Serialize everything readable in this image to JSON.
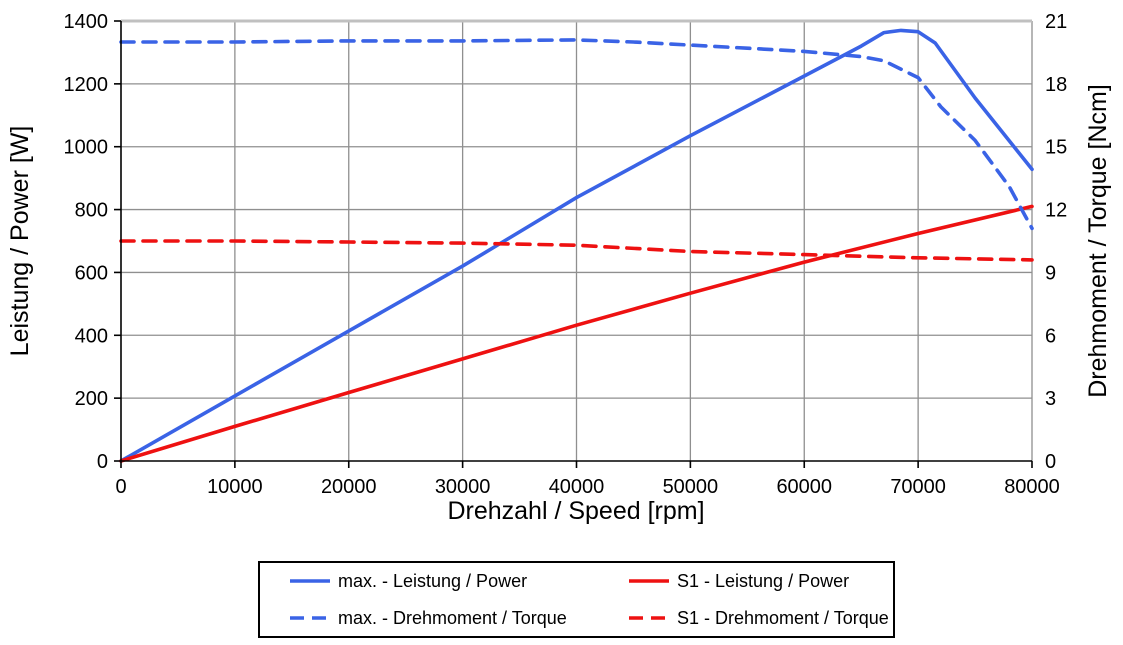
{
  "chart_data": {
    "type": "line",
    "title": "",
    "xlabel": "Drehzahl / Speed [rpm]",
    "ylabel_left": "Leistung / Power [W]",
    "ylabel_right": "Drehmoment / Torque [Ncm]",
    "grid": true,
    "legend_position": "bottom",
    "x_axis": {
      "min": 0,
      "max": 80000,
      "tick_step": 10000,
      "tick_labels": [
        "0",
        "10000",
        "20000",
        "30000",
        "40000",
        "50000",
        "60000",
        "70000",
        "80000"
      ]
    },
    "y_left": {
      "min": 0,
      "max": 1400,
      "tick_step": 200,
      "tick_labels": [
        "0",
        "200",
        "400",
        "600",
        "800",
        "1000",
        "1200",
        "1400"
      ]
    },
    "y_right": {
      "min": 0,
      "max": 21,
      "tick_step": 3,
      "tick_labels": [
        "0",
        "3",
        "6",
        "9",
        "12",
        "15",
        "18",
        "21"
      ]
    },
    "series": [
      {
        "name": "max. - Leistung / Power",
        "axis": "left",
        "style": "solid",
        "color": "#3a63e6",
        "points": [
          [
            0,
            0
          ],
          [
            10000,
            207
          ],
          [
            20000,
            414
          ],
          [
            30000,
            620
          ],
          [
            40000,
            838
          ],
          [
            50000,
            1035
          ],
          [
            60000,
            1225
          ],
          [
            65000,
            1320
          ],
          [
            67000,
            1363
          ],
          [
            68500,
            1370
          ],
          [
            70000,
            1366
          ],
          [
            71500,
            1330
          ],
          [
            75000,
            1155
          ],
          [
            80000,
            928
          ]
        ]
      },
      {
        "name": "S1 - Leistung / Power",
        "axis": "left",
        "style": "solid",
        "color": "#ee1111",
        "points": [
          [
            0,
            0
          ],
          [
            10000,
            110
          ],
          [
            20000,
            218
          ],
          [
            30000,
            325
          ],
          [
            40000,
            432
          ],
          [
            50000,
            534
          ],
          [
            60000,
            633
          ],
          [
            70000,
            724
          ],
          [
            80000,
            810
          ]
        ]
      },
      {
        "name": "max. - Drehmoment / Torque",
        "axis": "right",
        "style": "dashed",
        "color": "#3a63e6",
        "points": [
          [
            0,
            20.0
          ],
          [
            10000,
            20.0
          ],
          [
            20000,
            20.05
          ],
          [
            30000,
            20.05
          ],
          [
            40000,
            20.1
          ],
          [
            45000,
            20.0
          ],
          [
            50000,
            19.85
          ],
          [
            55000,
            19.7
          ],
          [
            60000,
            19.55
          ],
          [
            65000,
            19.3
          ],
          [
            67000,
            19.1
          ],
          [
            70000,
            18.3
          ],
          [
            72000,
            16.9
          ],
          [
            75000,
            15.3
          ],
          [
            78000,
            13.1
          ],
          [
            80000,
            11.1
          ]
        ]
      },
      {
        "name": "S1 - Drehmoment / Torque",
        "axis": "right",
        "style": "dashed",
        "color": "#ee1111",
        "points": [
          [
            0,
            10.5
          ],
          [
            10000,
            10.5
          ],
          [
            20000,
            10.45
          ],
          [
            30000,
            10.4
          ],
          [
            40000,
            10.3
          ],
          [
            50000,
            10.0
          ],
          [
            60000,
            9.85
          ],
          [
            70000,
            9.7
          ],
          [
            80000,
            9.6
          ]
        ]
      }
    ]
  },
  "legend": {
    "items": [
      {
        "label": "max. - Leistung / Power",
        "color": "#3a63e6",
        "dash": "solid"
      },
      {
        "label": "S1 - Leistung / Power",
        "color": "#ee1111",
        "dash": "solid"
      },
      {
        "label": "max. - Drehmoment / Torque",
        "color": "#3a63e6",
        "dash": "dashed"
      },
      {
        "label": "S1 - Drehmoment / Torque",
        "color": "#ee1111",
        "dash": "dashed"
      }
    ]
  },
  "colors": {
    "max_series": "#3a63e6",
    "s1_series": "#ee1111",
    "gridline": "#8f8f8f",
    "plot_top_border": "#c0c0c0",
    "axis": "#000000",
    "background": "#ffffff"
  }
}
